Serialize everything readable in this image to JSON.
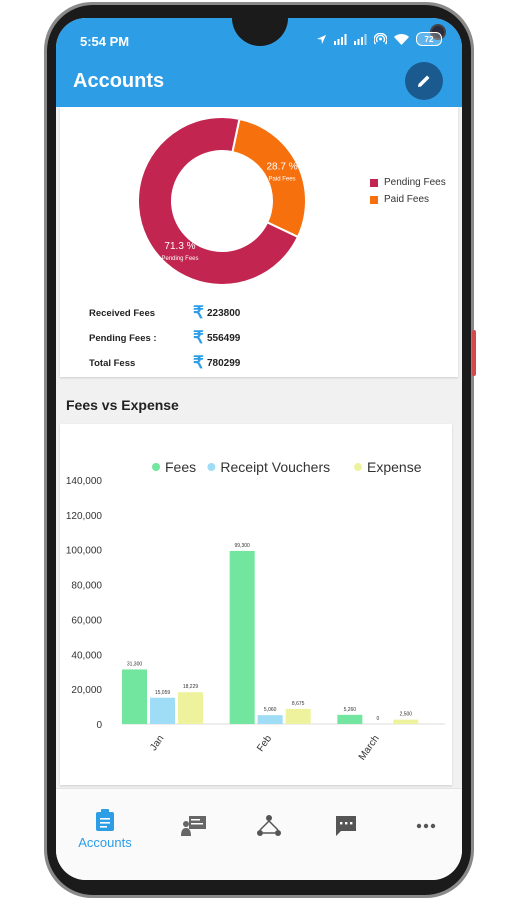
{
  "status_bar": {
    "time": "5:54 PM",
    "battery": "72"
  },
  "app_bar": {
    "title": "Accounts",
    "edit_icon": "pencil-icon"
  },
  "fees_summary": {
    "donut": {
      "slices": [
        {
          "name": "Pending Fees",
          "percent": 71.3,
          "label": "71.3 %",
          "sublabel": "Pending Fees",
          "color": "#c2254f"
        },
        {
          "name": "Paid Fees",
          "percent": 28.7,
          "label": "28.7 %",
          "sublabel": "Paid Fees",
          "color": "#f7700e"
        }
      ]
    },
    "legend": [
      {
        "label": "Pending Fees",
        "color": "#c2254f"
      },
      {
        "label": "Paid Fees",
        "color": "#f7700e"
      }
    ],
    "rows": [
      {
        "label": "Received Fees",
        "value": "223800"
      },
      {
        "label": "Pending Fees :",
        "value": "556499"
      },
      {
        "label": "Total Fess",
        "value": "780299"
      }
    ],
    "currency_symbol": "₹"
  },
  "section_title": "Fees vs Expense",
  "chart_data": {
    "type": "bar",
    "categories": [
      "Jan",
      "Feb",
      "March"
    ],
    "series": [
      {
        "name": "Fees",
        "values": [
          31300,
          99300,
          5260
        ],
        "color": "#72e59e"
      },
      {
        "name": "Receipt Vouchers",
        "values": [
          15059,
          5060,
          0
        ],
        "color": "#9fdcf5"
      },
      {
        "name": "Expense",
        "values": [
          18229,
          8675,
          2500
        ],
        "color": "#eef29c"
      }
    ],
    "data_labels": [
      [
        "31,300",
        "15,059",
        "18,229"
      ],
      [
        "99,300",
        "5,060",
        "8,675"
      ],
      [
        "5,260",
        "0",
        "2,500"
      ]
    ],
    "ylim": [
      0,
      140000
    ],
    "yticks": [
      0,
      20000,
      40000,
      60000,
      80000,
      100000,
      120000,
      140000
    ],
    "ytick_labels": [
      "0",
      "20,000",
      "40,000",
      "60,000",
      "80,000",
      "100,000",
      "120,000",
      "140,000"
    ],
    "legend_position": "top",
    "title": "",
    "xlabel": "",
    "ylabel": ""
  },
  "bottom_nav": {
    "items": [
      {
        "name": "accounts",
        "label": "Accounts",
        "icon": "clipboard-icon",
        "active": true
      },
      {
        "name": "staff",
        "icon": "teacher-board-icon"
      },
      {
        "name": "network",
        "icon": "network-icon"
      },
      {
        "name": "messages",
        "icon": "chat-icon"
      },
      {
        "name": "more",
        "icon": "more-dots-icon"
      }
    ]
  }
}
